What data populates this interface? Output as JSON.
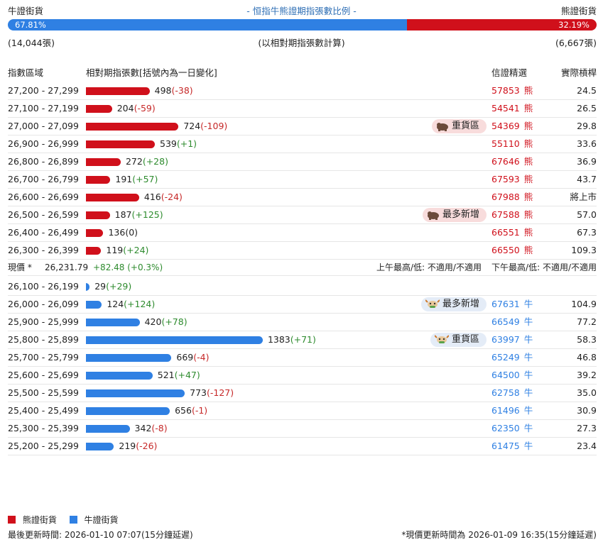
{
  "colors": {
    "bear": "#d0101b",
    "bull": "#2f80e3",
    "up": "#2e8b2e",
    "down": "#c62828"
  },
  "header": {
    "bull_label": "牛證街貨",
    "title": "- 恒指牛熊證期指張數比例 -",
    "bear_label": "熊證街貨"
  },
  "ratio": {
    "bull_pct": 67.81,
    "bull_pct_label": "67.81%",
    "bear_pct": 32.19,
    "bear_pct_label": "32.19%",
    "bull_count": "(14,044張)",
    "note": "(以相對期指張數計算)",
    "bear_count": "(6,667張)"
  },
  "columns": [
    "指數區域",
    "相對期指張數[括號內為一日變化]",
    "信證精選",
    "實際槓桿"
  ],
  "bear_rows": [
    {
      "range": "27,200 - 27,299",
      "count": 498,
      "change": "(-38)",
      "code": "57853",
      "kind": "熊",
      "leverage": "24.5"
    },
    {
      "range": "27,100 - 27,199",
      "count": 204,
      "change": "(-59)",
      "code": "54541",
      "kind": "熊",
      "leverage": "26.5"
    },
    {
      "range": "27,000 - 27,099",
      "count": 724,
      "change": "(-109)",
      "badge": "重貨區",
      "code": "54369",
      "kind": "熊",
      "leverage": "29.8"
    },
    {
      "range": "26,900 - 26,999",
      "count": 539,
      "change": "(+1)",
      "code": "55110",
      "kind": "熊",
      "leverage": "33.6"
    },
    {
      "range": "26,800 - 26,899",
      "count": 272,
      "change": "(+28)",
      "code": "67646",
      "kind": "熊",
      "leverage": "36.9"
    },
    {
      "range": "26,700 - 26,799",
      "count": 191,
      "change": "(+57)",
      "code": "67593",
      "kind": "熊",
      "leverage": "43.7"
    },
    {
      "range": "26,600 - 26,699",
      "count": 416,
      "change": "(-24)",
      "code": "67988",
      "kind": "熊",
      "leverage": "將上市"
    },
    {
      "range": "26,500 - 26,599",
      "count": 187,
      "change": "(+125)",
      "badge": "最多新增",
      "code": "67588",
      "kind": "熊",
      "leverage": "57.0"
    },
    {
      "range": "26,400 - 26,499",
      "count": 136,
      "change": "(0)",
      "code": "66551",
      "kind": "熊",
      "leverage": "67.3"
    },
    {
      "range": "26,300 - 26,399",
      "count": 119,
      "change": "(+24)",
      "code": "66550",
      "kind": "熊",
      "leverage": "109.3"
    }
  ],
  "price": {
    "label": "現價 *",
    "value": "26,231.79",
    "change": "+82.48 (+0.3%)",
    "am": "上午最高/低: 不適用/不適用",
    "pm": "下午最高/低: 不適用/不適用"
  },
  "bull_rows": [
    {
      "range": "26,100 - 26,199",
      "count": 29,
      "change": "(+29)"
    },
    {
      "range": "26,000 - 26,099",
      "count": 124,
      "change": "(+124)",
      "badge": "最多新增",
      "code": "67631",
      "kind": "牛",
      "leverage": "104.9"
    },
    {
      "range": "25,900 - 25,999",
      "count": 420,
      "change": "(+78)",
      "code": "66549",
      "kind": "牛",
      "leverage": "77.2"
    },
    {
      "range": "25,800 - 25,899",
      "count": 1383,
      "change": "(+71)",
      "badge": "重貨區",
      "code": "63997",
      "kind": "牛",
      "leverage": "58.3"
    },
    {
      "range": "25,700 - 25,799",
      "count": 669,
      "change": "(-4)",
      "code": "65249",
      "kind": "牛",
      "leverage": "46.8"
    },
    {
      "range": "25,600 - 25,699",
      "count": 521,
      "change": "(+47)",
      "code": "64500",
      "kind": "牛",
      "leverage": "39.2"
    },
    {
      "range": "25,500 - 25,599",
      "count": 773,
      "change": "(-127)",
      "code": "62758",
      "kind": "牛",
      "leverage": "35.0"
    },
    {
      "range": "25,400 - 25,499",
      "count": 656,
      "change": "(-1)",
      "code": "61496",
      "kind": "牛",
      "leverage": "30.9"
    },
    {
      "range": "25,300 - 25,399",
      "count": 342,
      "change": "(-8)",
      "code": "62350",
      "kind": "牛",
      "leverage": "27.3"
    },
    {
      "range": "25,200 - 25,299",
      "count": 219,
      "change": "(-26)",
      "code": "61475",
      "kind": "牛",
      "leverage": "23.4"
    }
  ],
  "legend": {
    "bear": "熊證街貨",
    "bull": "牛證街貨"
  },
  "footer": {
    "left": "最後更新時間: 2026-01-10 07:07(15分鐘延遲)",
    "right": "*現價更新時間為 2026-01-09 16:35(15分鐘延遲)"
  }
}
